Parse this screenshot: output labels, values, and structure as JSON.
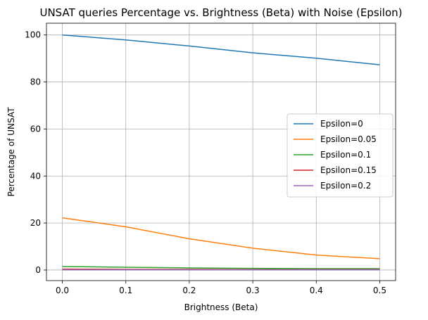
{
  "chart_data": {
    "type": "line",
    "title": "UNSAT queries Percentage vs. Brightness (Beta) with Noise (Epsilon)",
    "xlabel": "Brightness (Beta)",
    "ylabel": "Percentage of UNSAT",
    "xlim": [
      -0.025,
      0.525
    ],
    "ylim": [
      -4.5,
      105
    ],
    "xticks": [
      0.0,
      0.1,
      0.2,
      0.3,
      0.4,
      0.5
    ],
    "xtick_labels": [
      "0.0",
      "0.1",
      "0.2",
      "0.3",
      "0.4",
      "0.5"
    ],
    "yticks": [
      0,
      20,
      40,
      60,
      80,
      100
    ],
    "ytick_labels": [
      "0",
      "20",
      "40",
      "60",
      "80",
      "100"
    ],
    "grid": true,
    "legend_position": "center-right",
    "x": [
      0.0,
      0.1,
      0.2,
      0.3,
      0.4,
      0.5
    ],
    "series": [
      {
        "name": "Epsilon=0",
        "color": "#1f77b4",
        "values": [
          100.0,
          97.9,
          95.3,
          92.4,
          90.1,
          87.3
        ]
      },
      {
        "name": "Epsilon=0.05",
        "color": "#ff7f0e",
        "values": [
          22.2,
          18.4,
          13.3,
          9.3,
          6.4,
          4.8
        ]
      },
      {
        "name": "Epsilon=0.1",
        "color": "#2ca02c",
        "values": [
          1.5,
          1.2,
          0.9,
          0.7,
          0.6,
          0.6
        ]
      },
      {
        "name": "Epsilon=0.15",
        "color": "#d62728",
        "values": [
          0.4,
          0.3,
          0.3,
          0.2,
          0.2,
          0.2
        ]
      },
      {
        "name": "Epsilon=0.2",
        "color": "#9467bd",
        "values": [
          0.1,
          0.1,
          0.1,
          0.1,
          0.1,
          0.1
        ]
      }
    ]
  }
}
